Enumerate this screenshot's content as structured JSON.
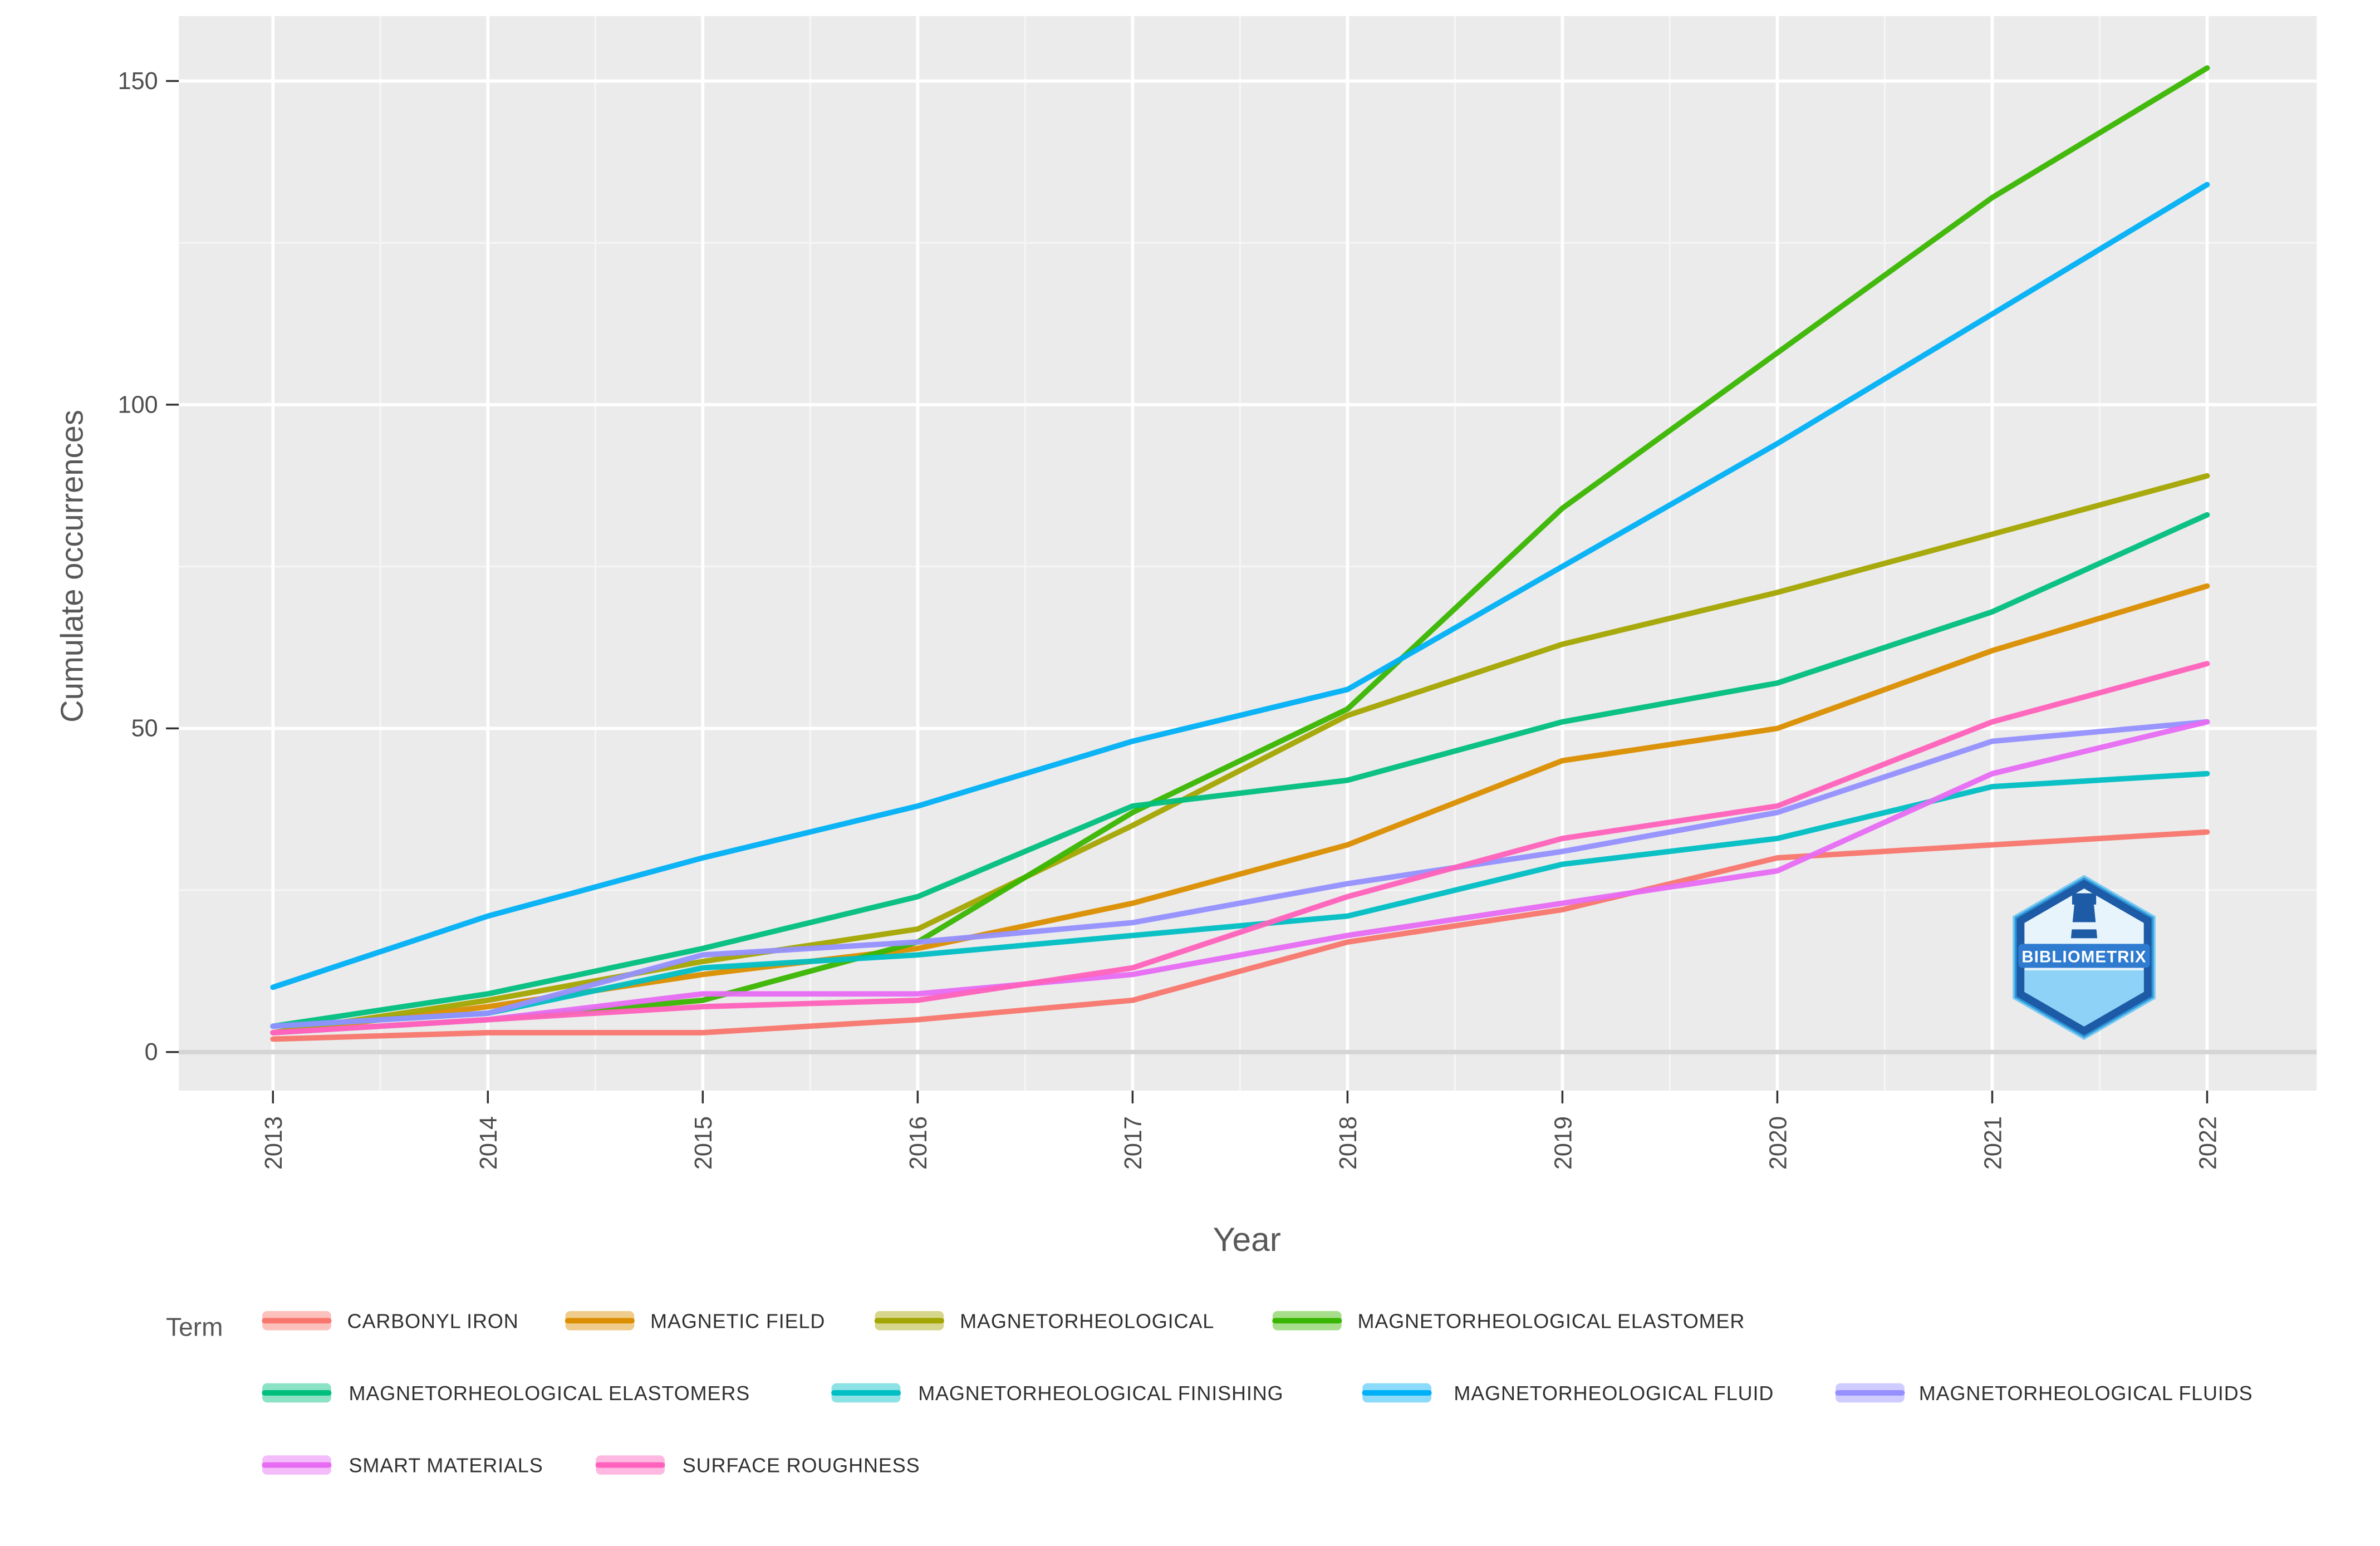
{
  "chart_data": {
    "type": "line",
    "title": "",
    "xlabel": "Year",
    "ylabel": "Cumulate occurrences",
    "legend_title": "Term",
    "legend_position": "bottom",
    "grid": "white major gridlines on gray panel, faint minor gridlines",
    "x": [
      2013,
      2014,
      2015,
      2016,
      2017,
      2018,
      2019,
      2020,
      2021,
      2022
    ],
    "x_tick_labels": [
      "2013",
      "2014",
      "2015",
      "2016",
      "2017",
      "2018",
      "2019",
      "2020",
      "2021",
      "2022"
    ],
    "y_ticks": [
      0,
      50,
      100,
      150
    ],
    "ylim": [
      0,
      155
    ],
    "series": [
      {
        "name": "CARBONYL IRON",
        "color": "#F8766D",
        "values": [
          2,
          3,
          3,
          5,
          8,
          17,
          22,
          30,
          32,
          34
        ]
      },
      {
        "name": "MAGNETIC FIELD",
        "color": "#DB8E00",
        "values": [
          3,
          7,
          12,
          16,
          23,
          32,
          45,
          50,
          62,
          72
        ]
      },
      {
        "name": "MAGNETORHEOLOGICAL",
        "color": "#A3A500",
        "values": [
          3,
          8,
          14,
          19,
          35,
          52,
          63,
          71,
          80,
          89
        ]
      },
      {
        "name": "MAGNETORHEOLOGICAL ELASTOMER",
        "color": "#39B600",
        "values": [
          3,
          5,
          8,
          17,
          37,
          53,
          84,
          108,
          132,
          152
        ]
      },
      {
        "name": "MAGNETORHEOLOGICAL ELASTOMERS",
        "color": "#00BF7D",
        "values": [
          4,
          9,
          16,
          24,
          38,
          42,
          51,
          57,
          68,
          83
        ]
      },
      {
        "name": "MAGNETORHEOLOGICAL FINISHING",
        "color": "#00BFC4",
        "values": [
          4,
          6,
          13,
          15,
          18,
          21,
          29,
          33,
          41,
          43
        ]
      },
      {
        "name": "MAGNETORHEOLOGICAL FLUID",
        "color": "#00B0F6",
        "values": [
          10,
          21,
          30,
          38,
          48,
          56,
          75,
          94,
          114,
          134
        ]
      },
      {
        "name": "MAGNETORHEOLOGICAL FLUIDS",
        "color": "#9590FF",
        "values": [
          4,
          6,
          15,
          17,
          20,
          26,
          31,
          37,
          48,
          51
        ]
      },
      {
        "name": "SMART MATERIALS",
        "color": "#E76BF3",
        "values": [
          3,
          5,
          9,
          9,
          12,
          18,
          23,
          28,
          43,
          51
        ]
      },
      {
        "name": "SURFACE ROUGHNESS",
        "color": "#FF62BC",
        "values": [
          3,
          5,
          7,
          8,
          13,
          24,
          33,
          38,
          51,
          60
        ]
      }
    ]
  },
  "panel": {
    "background": "#EBEBEB",
    "grid_major": "#FFFFFF",
    "grid_minor": "#F5F5F5",
    "zero_line": "#D5D5D5",
    "tick_color": "#333333"
  },
  "logo": {
    "text": "BIBLIOMETRIX",
    "outer_color": "#1D5BA6",
    "inner_color": "#E8F4FC",
    "accent_color": "#35B6F2"
  }
}
